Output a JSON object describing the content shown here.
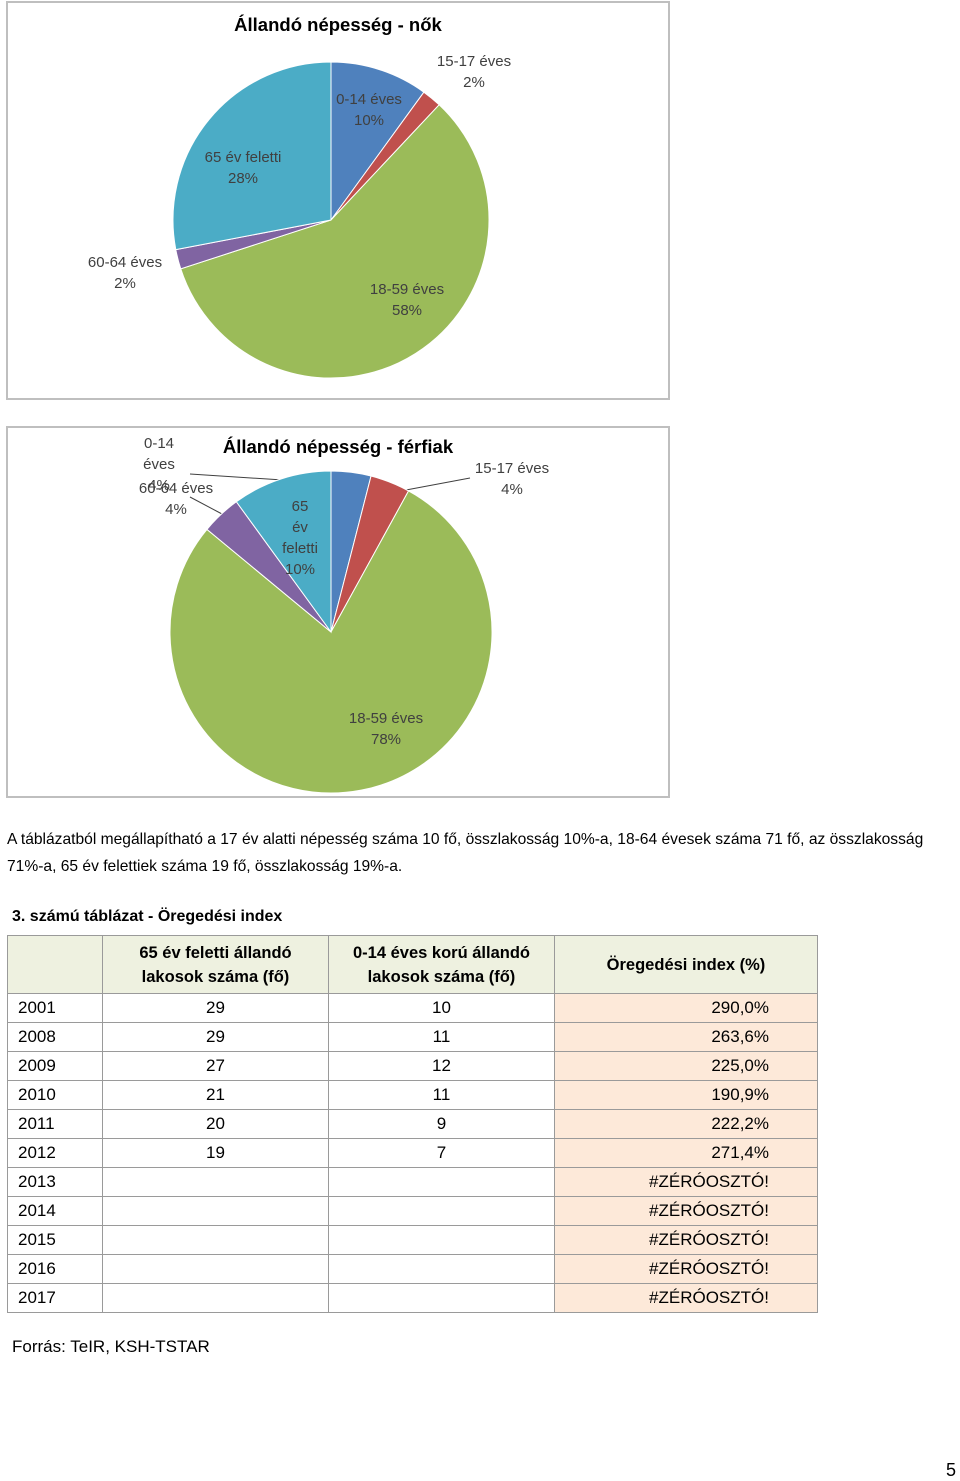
{
  "chart_data": [
    {
      "type": "pie",
      "title": "Állandó népesség - nők",
      "categories": [
        "0-14 éves",
        "15-17 éves",
        "18-59 éves",
        "60-64 éves",
        "65 év feletti"
      ],
      "values": [
        10,
        2,
        58,
        2,
        28
      ],
      "value_labels": [
        "10%",
        "2%",
        "58%",
        "2%",
        "28%"
      ],
      "colors": [
        "#4f81bd",
        "#c0504d",
        "#9bbb59",
        "#8064a2",
        "#4bacc6"
      ]
    },
    {
      "type": "pie",
      "title": "Állandó népesség - férfiak",
      "categories": [
        "0-14 éves",
        "15-17 éves",
        "18-59 éves",
        "60-64 éves",
        "65 év feletti"
      ],
      "values": [
        4,
        4,
        78,
        4,
        10
      ],
      "value_labels": [
        "4%",
        "4%",
        "78%",
        "4%",
        "10%"
      ],
      "colors": [
        "#4f81bd",
        "#c0504d",
        "#9bbb59",
        "#8064a2",
        "#4bacc6"
      ]
    }
  ],
  "paragraph": "A táblázatból megállapítható a 17 év alatti népesség száma 10 fő, összlakosság 10%-a, 18-64 évesek száma 71 fő, az összlakosság 71%-a, 65 év felettiek száma 19 fő, összlakosság 19%-a.",
  "table": {
    "caption": "3. számú táblázat - Öregedési index",
    "header": [
      null,
      "65 év feletti állandó lakosok száma (fő)",
      "0-14 éves korú állandó lakosok száma (fő)",
      "Öregedési index (%)"
    ],
    "rows": [
      [
        "2001",
        "29",
        "10",
        "290,0%"
      ],
      [
        "2008",
        "29",
        "11",
        "263,6%"
      ],
      [
        "2009",
        "27",
        "12",
        "225,0%"
      ],
      [
        "2010",
        "21",
        "11",
        "190,9%"
      ],
      [
        "2011",
        "20",
        "9",
        "222,2%"
      ],
      [
        "2012",
        "19",
        "7",
        "271,4%"
      ],
      [
        "2013",
        null,
        null,
        "#ZÉRÓOSZTÓ!"
      ],
      [
        "2014",
        null,
        null,
        "#ZÉRÓOSZTÓ!"
      ],
      [
        "2015",
        null,
        null,
        "#ZÉRÓOSZTÓ!"
      ],
      [
        "2016",
        null,
        null,
        "#ZÉRÓOSZTÓ!"
      ],
      [
        "2017",
        null,
        null,
        "#ZÉRÓOSZTÓ!"
      ]
    ]
  },
  "source": "Forrás: TeIR, KSH-TSTAR",
  "page_number": "5"
}
